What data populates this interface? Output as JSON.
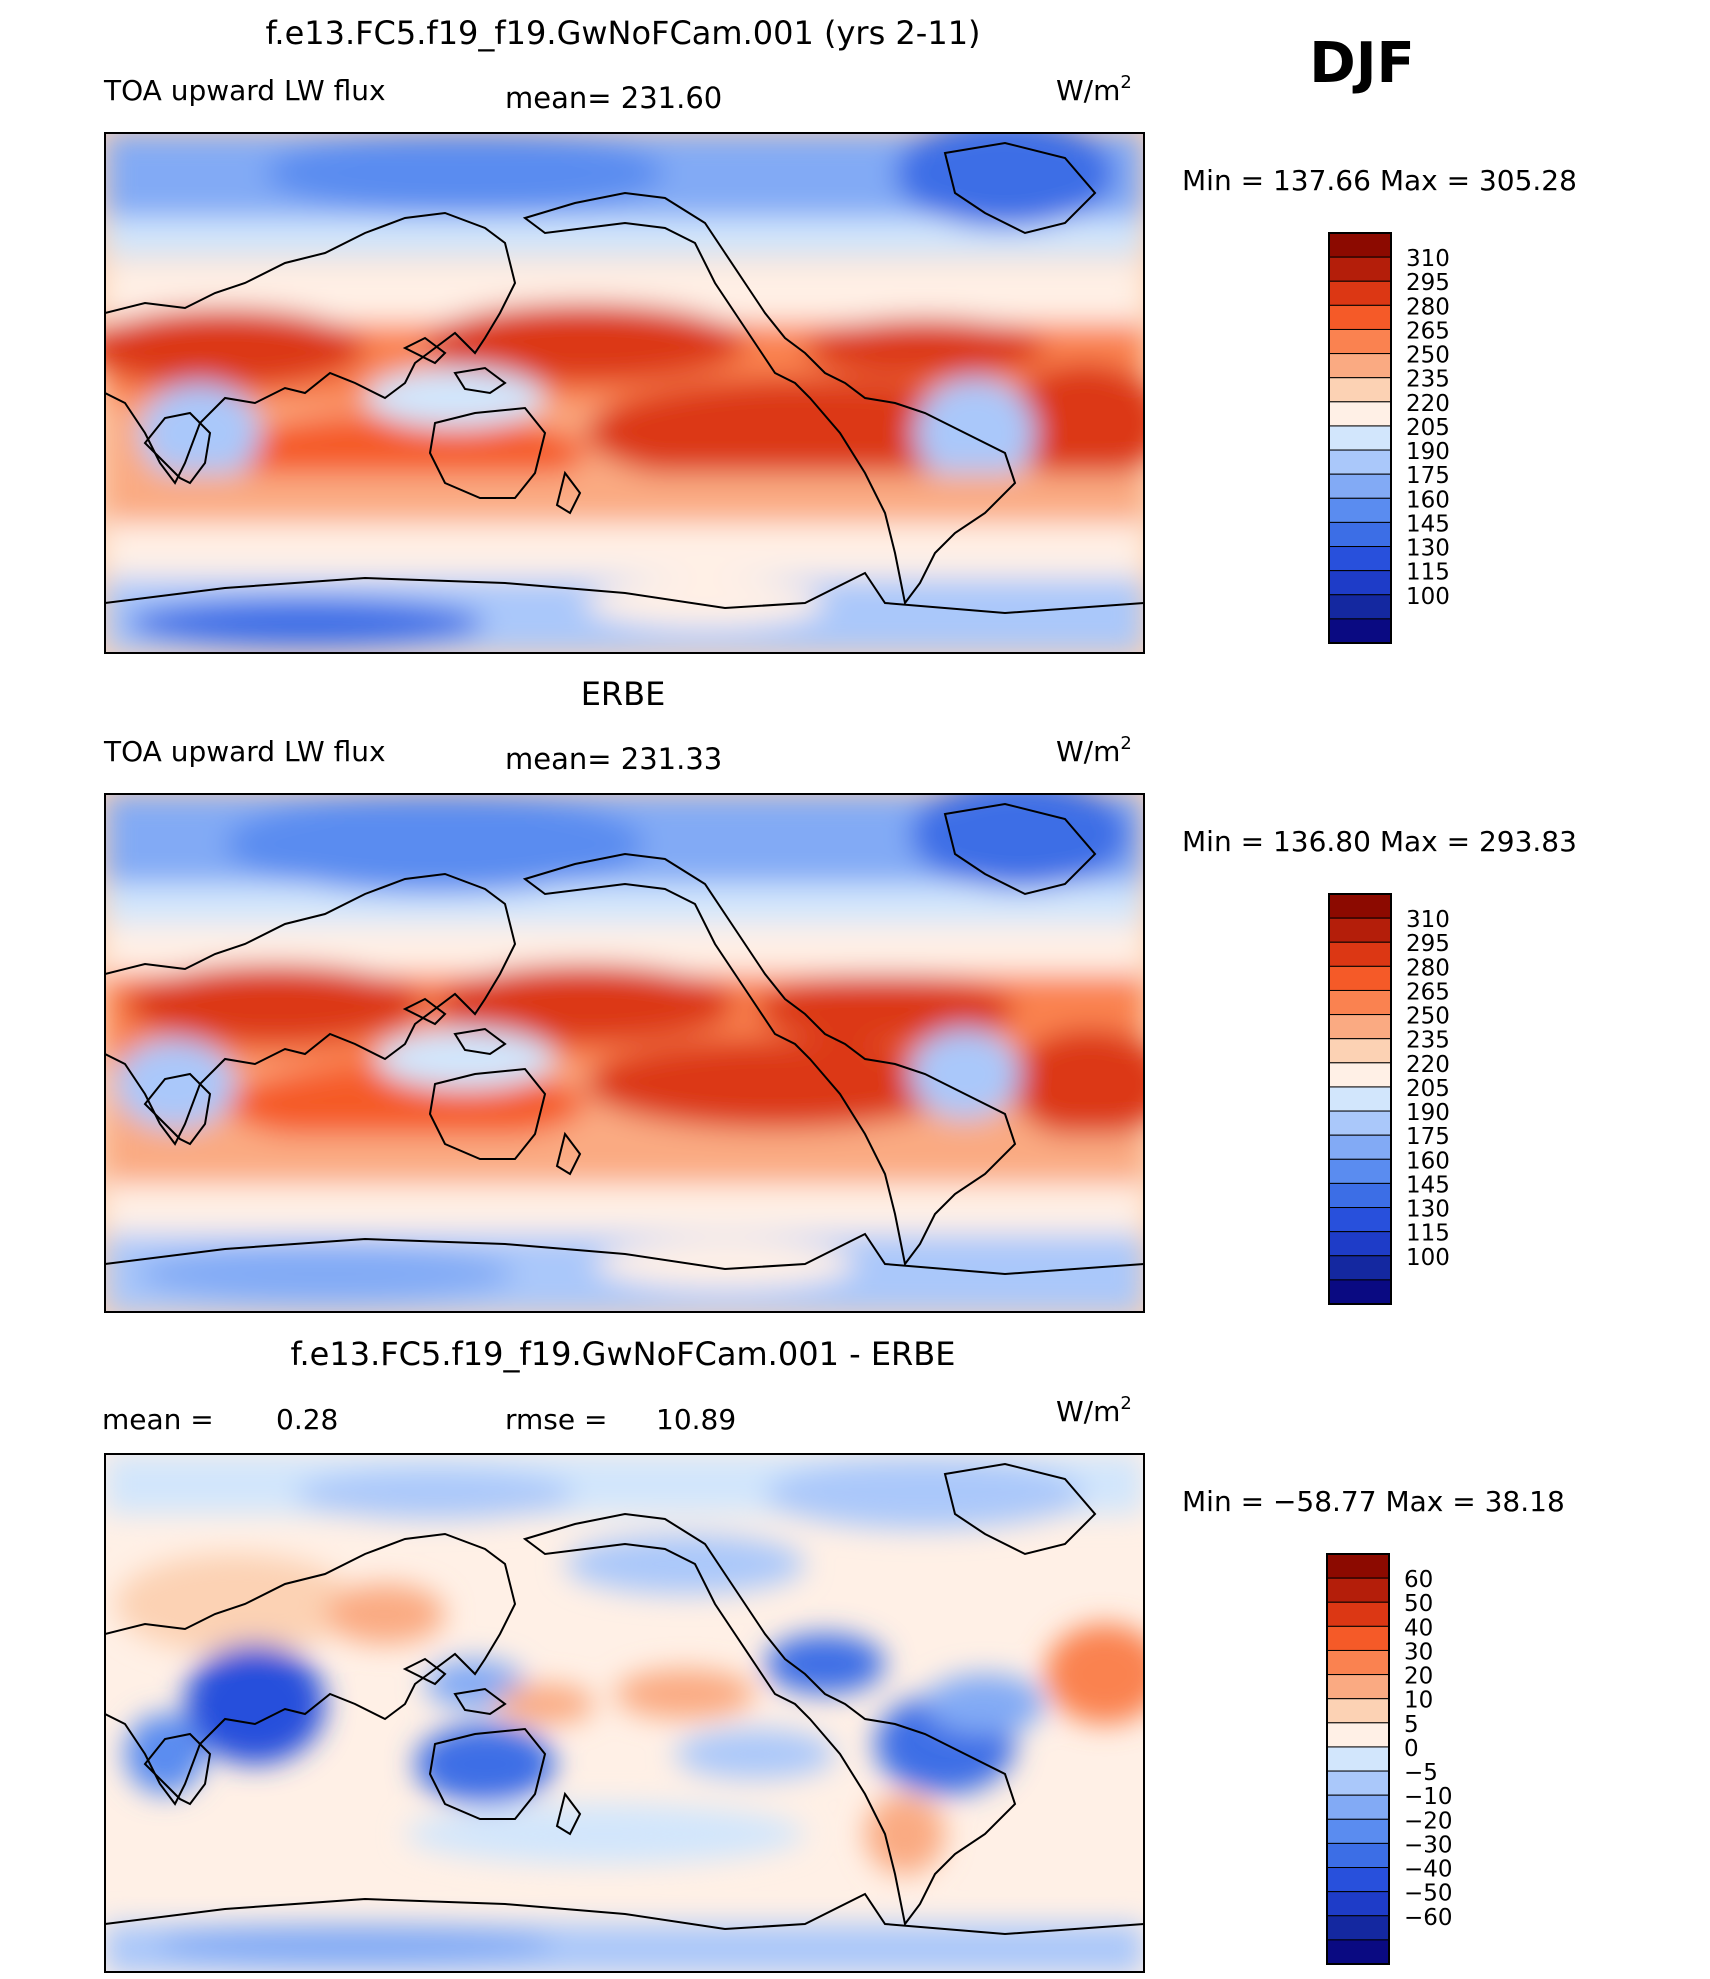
{
  "season": "DJF",
  "colors": {
    "abs_levels": [
      "#0a0a82",
      "#1428a0",
      "#1e3cc8",
      "#2850dc",
      "#3c6ee6",
      "#5a8cf0",
      "#82aaf5",
      "#aac8fa",
      "#d2e6fc",
      "#fff0e6",
      "#fcd2b4",
      "#faaa82",
      "#fa8250",
      "#f55a28",
      "#dc3714",
      "#b41e0a",
      "#8c0a00"
    ],
    "diff_levels": [
      "#0a0a82",
      "#1428a0",
      "#1e3cc8",
      "#2850dc",
      "#3c6ee6",
      "#5a8cf0",
      "#82aaf5",
      "#aac8fa",
      "#d2e6fc",
      "#fff0e6",
      "#fcd2b4",
      "#faaa82",
      "#fa8250",
      "#f55a28",
      "#dc3714",
      "#b41e0a",
      "#8c0a00"
    ],
    "frame": "#000000",
    "coast": "#000000"
  },
  "chart_data": [
    {
      "type": "heatmap",
      "title": "f.e13.FC5.f19_f19.GwNoFCam.001 (yrs 2-11)",
      "left_label": "TOA upward LW flux",
      "center_label": "mean= 231.60",
      "units_prefix": "W/m",
      "units_sup": "2",
      "minmax": "Min = 137.66 Max = 305.28",
      "min": 137.66,
      "max": 305.28,
      "mean": 231.6,
      "colorbar_labels": [
        "310",
        "295",
        "280",
        "265",
        "250",
        "235",
        "220",
        "205",
        "190",
        "175",
        "160",
        "145",
        "130",
        "115",
        "100"
      ]
    },
    {
      "type": "heatmap",
      "title": "ERBE",
      "left_label": "TOA upward LW flux",
      "center_label": "mean= 231.33",
      "units_prefix": "W/m",
      "units_sup": "2",
      "minmax": "Min = 136.80 Max = 293.83",
      "min": 136.8,
      "max": 293.83,
      "mean": 231.33,
      "colorbar_labels": [
        "310",
        "295",
        "280",
        "265",
        "250",
        "235",
        "220",
        "205",
        "190",
        "175",
        "160",
        "145",
        "130",
        "115",
        "100"
      ]
    },
    {
      "type": "heatmap",
      "title": "f.e13.FC5.f19_f19.GwNoFCam.001 - ERBE",
      "left_label": "mean =",
      "left_value": "0.28",
      "center_label": "rmse =",
      "center_value": "10.89",
      "units_prefix": "W/m",
      "units_sup": "2",
      "minmax": "Min = −58.77 Max = 38.18",
      "min": -58.77,
      "max": 38.18,
      "mean": 0.28,
      "rmse": 10.89,
      "colorbar_labels": [
        "60",
        "50",
        "40",
        "30",
        "20",
        "10",
        "5",
        "0",
        "−5",
        "−10",
        "−20",
        "−30",
        "−40",
        "−50",
        "−60"
      ]
    }
  ]
}
